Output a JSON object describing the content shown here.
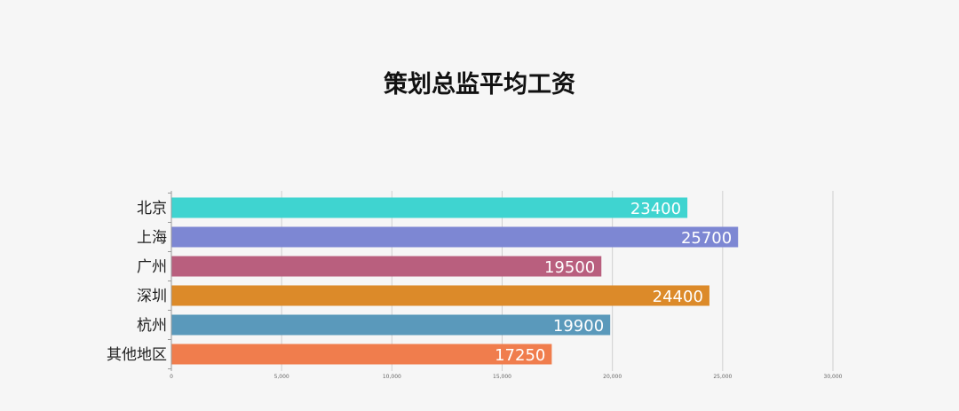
{
  "chart_data": {
    "type": "bar",
    "orientation": "horizontal",
    "title": "策划总监平均工资",
    "xlabel": "",
    "ylabel": "",
    "categories": [
      "北京",
      "上海",
      "广州",
      "深圳",
      "杭州",
      "其他地区"
    ],
    "values": [
      23400,
      25700,
      19500,
      24400,
      19900,
      17250
    ],
    "colors": [
      "#3fd4d0",
      "#7d87d3",
      "#b95f7e",
      "#dc8a29",
      "#5a99bb",
      "#f07d4d"
    ],
    "xlim": [
      0,
      30000
    ],
    "xticks": [
      0,
      5000,
      10000,
      15000,
      20000,
      25000,
      30000
    ],
    "xtick_labels": [
      "0",
      "5,000",
      "10,000",
      "15,000",
      "20,000",
      "25,000",
      "30,000"
    ],
    "grid": true,
    "legend": "none",
    "data_labels": true
  }
}
